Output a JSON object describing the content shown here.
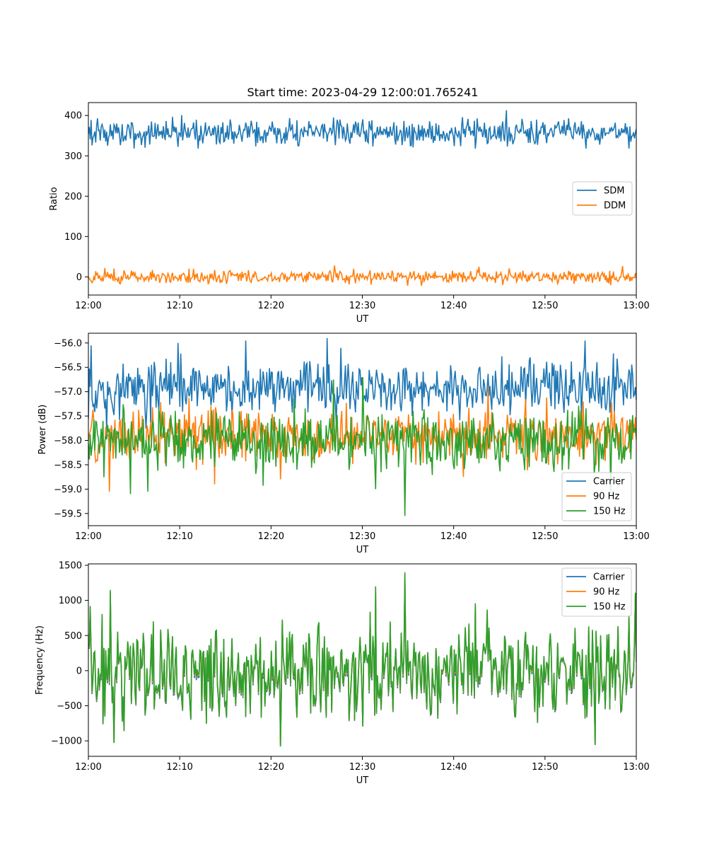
{
  "figure": {
    "title": "Start time: 2023-04-29 12:00:01.765241"
  },
  "chart_data": [
    {
      "type": "line",
      "xlabel": "UT",
      "ylabel": "Ratio",
      "xlim": [
        "12:00",
        "13:00"
      ],
      "xticks": [
        "12:00",
        "12:10",
        "12:20",
        "12:30",
        "12:40",
        "12:50",
        "13:00"
      ],
      "ylim": [
        -45,
        432
      ],
      "yticks": [
        0,
        100,
        200,
        300,
        400
      ],
      "grid": false,
      "legend": "center right",
      "samples_per_series": 600,
      "series": [
        {
          "name": "SDM",
          "color": "#1f77b4",
          "mean": 357,
          "spread": 16,
          "min": 318,
          "max": 413,
          "keypoints": [
            [
              0.5,
              345
            ],
            [
              1.5,
              378
            ],
            [
              2.1,
              325
            ],
            [
              3.1,
              380
            ],
            [
              4.8,
              381
            ],
            [
              6.7,
              328
            ],
            [
              10.2,
              401
            ],
            [
              14.7,
              383
            ],
            [
              15.5,
              390
            ],
            [
              26.8,
              395
            ],
            [
              27.5,
              390
            ],
            [
              29.2,
              385
            ],
            [
              45.8,
              413
            ],
            [
              46.5,
              329
            ],
            [
              54.5,
              318
            ],
            [
              58.8,
              381
            ]
          ]
        },
        {
          "name": "DDM",
          "color": "#ff7f0e",
          "mean": 0,
          "spread": 8,
          "min": -22,
          "max": 28,
          "keypoints": [
            [
              1.8,
              22
            ],
            [
              3.5,
              -17
            ],
            [
              7.0,
              17
            ],
            [
              11.5,
              20
            ],
            [
              26.9,
              28
            ],
            [
              29.0,
              20
            ],
            [
              35.0,
              -22
            ],
            [
              42.8,
              25
            ],
            [
              58.5,
              27
            ]
          ]
        }
      ]
    },
    {
      "type": "line",
      "xlabel": "UT",
      "ylabel": "Power (dB)",
      "xlim": [
        "12:00",
        "13:00"
      ],
      "xticks": [
        "12:00",
        "12:10",
        "12:20",
        "12:30",
        "12:40",
        "12:50",
        "13:00"
      ],
      "ylim": [
        -59.75,
        -55.8
      ],
      "yticks": [
        -59.5,
        -59.0,
        -58.5,
        -58.0,
        -57.5,
        -57.0,
        -56.5,
        -56.0
      ],
      "grid": false,
      "legend": "lower right",
      "samples_per_series": 600,
      "series": [
        {
          "name": "Carrier",
          "color": "#1f77b4",
          "mean": -56.95,
          "spread": 0.28,
          "min": -57.85,
          "max": -55.9,
          "keypoints": [
            [
              0.3,
              -56.05
            ],
            [
              2.0,
              -57.8
            ],
            [
              9.8,
              -56.0
            ],
            [
              17.2,
              -55.95
            ],
            [
              26.1,
              -55.9
            ],
            [
              27.6,
              -56.1
            ],
            [
              35.5,
              -57.5
            ],
            [
              54.4,
              -55.95
            ]
          ]
        },
        {
          "name": "90 Hz",
          "color": "#ff7f0e",
          "mean": -57.9,
          "spread": 0.28,
          "min": -59.05,
          "max": -56.9,
          "keypoints": [
            [
              2.3,
              -59.05
            ],
            [
              13.8,
              -58.9
            ],
            [
              21.0,
              -58.8
            ],
            [
              41.1,
              -58.75
            ],
            [
              43.8,
              -56.9
            ],
            [
              50.4,
              -58.5
            ]
          ]
        },
        {
          "name": "150 Hz",
          "color": "#2ca02c",
          "mean": -58.0,
          "spread": 0.3,
          "min": -59.55,
          "max": -56.7,
          "keypoints": [
            [
              4.6,
              -59.1
            ],
            [
              6.5,
              -59.05
            ],
            [
              31.5,
              -59.0
            ],
            [
              34.7,
              -59.55
            ],
            [
              26.8,
              -56.75
            ],
            [
              30.0,
              -56.7
            ],
            [
              57.2,
              -59.1
            ]
          ]
        }
      ]
    },
    {
      "type": "line",
      "xlabel": "UT",
      "ylabel": "Frequency (Hz)",
      "xlim": [
        "12:00",
        "13:00"
      ],
      "xticks": [
        "12:00",
        "12:10",
        "12:20",
        "12:30",
        "12:40",
        "12:50",
        "13:00"
      ],
      "ylim": [
        -1220,
        1520
      ],
      "yticks": [
        -1000,
        -500,
        0,
        500,
        1000,
        1500
      ],
      "grid": false,
      "legend": "upper right",
      "samples_per_series": 600,
      "series": [
        {
          "name": "Carrier",
          "color": "#1f77b4",
          "offset": -50
        },
        {
          "name": "90 Hz",
          "color": "#ff7f0e",
          "offset": -20
        },
        {
          "name": "150 Hz",
          "color": "#2ca02c",
          "mean": 0,
          "spread": 330,
          "min": -1080,
          "max": 1400,
          "keypoints": [
            [
              0.2,
              920
            ],
            [
              2.4,
              1150
            ],
            [
              2.8,
              -1030
            ],
            [
              21.0,
              -1080
            ],
            [
              31.5,
              1200
            ],
            [
              34.7,
              1400
            ],
            [
              55.5,
              -1060
            ],
            [
              59.9,
              1110
            ]
          ]
        }
      ]
    }
  ]
}
